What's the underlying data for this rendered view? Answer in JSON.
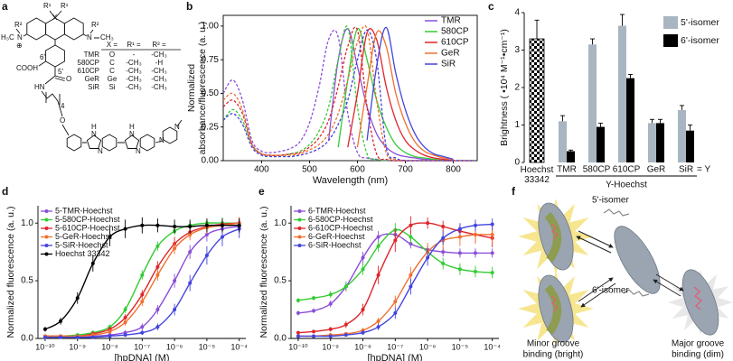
{
  "panel_labels": [
    "a",
    "b",
    "c",
    "d",
    "e",
    "f"
  ],
  "structure": {
    "labels": [
      "R²",
      "H₃C",
      "N",
      "⊕",
      "X",
      "R¹",
      "R¹",
      "N",
      "R²",
      "CH₃",
      "COOH",
      "O",
      "HN",
      "4",
      "O",
      "6'",
      "5'",
      "H",
      "N",
      "N",
      "H",
      "N",
      "N",
      "N",
      "N"
    ],
    "table": {
      "header": [
        "X =",
        "R¹ =",
        "R² ="
      ],
      "rows": [
        [
          "TMR",
          "O",
          "-",
          "-CH₃"
        ],
        [
          "580CP",
          "C",
          "-CH₃",
          "-H"
        ],
        [
          "610CP",
          "C",
          "-CH₃",
          "-CH₃"
        ],
        [
          "GeR",
          "Ge",
          "-CH₃",
          "-CH₃"
        ],
        [
          "SiR",
          "Si",
          "-CH₃",
          "-CH₃"
        ]
      ]
    }
  },
  "chart_data": [
    {
      "type": "line",
      "x_label": "Wavelength (nm)",
      "y_label": [
        "Normalized",
        "absorbance/fluorescence (a. u.)"
      ],
      "x": [
        320,
        340,
        360,
        380,
        400,
        420,
        440,
        460,
        480,
        500,
        520,
        540,
        560,
        580,
        600,
        620,
        640,
        660,
        680,
        700,
        720,
        740,
        760,
        780,
        800,
        820,
        840
      ],
      "xlim": [
        320,
        850
      ],
      "xticks": [
        400,
        500,
        600,
        700,
        800
      ],
      "ylim": [
        0,
        1.08
      ],
      "yticks": [
        {
          "value": 0,
          "label": "0.00"
        },
        {
          "value": 0.25,
          "label": "0.25"
        },
        {
          "value": 0.5,
          "label": "0.50"
        },
        {
          "value": 0.75,
          "label": "0.75"
        },
        {
          "value": 1,
          "label": "1.00"
        }
      ],
      "legend": "upper right",
      "series": [
        {
          "name": "TMR",
          "color": "#8a4fd8",
          "absorbance": [
            0.5,
            0.6,
            0.45,
            0.15,
            0.07,
            0.06,
            0.07,
            0.09,
            0.14,
            0.28,
            0.55,
            0.9,
            0.92,
            0.35,
            0.06,
            0.02,
            0.01,
            0,
            0,
            0,
            0,
            0,
            0,
            0,
            0,
            0,
            0
          ],
          "fluorescence": [
            null,
            null,
            null,
            null,
            null,
            null,
            null,
            null,
            null,
            null,
            null,
            0.15,
            0.75,
            0.98,
            0.7,
            0.4,
            0.2,
            0.1,
            0.05,
            0.03,
            0.02,
            0.01,
            0.01,
            0,
            0,
            null,
            null
          ]
        },
        {
          "name": "580CP",
          "color": "#33cc33",
          "absorbance": [
            0.3,
            0.38,
            0.3,
            0.12,
            0.05,
            0.04,
            0.04,
            0.05,
            0.07,
            0.12,
            0.22,
            0.4,
            0.75,
            0.99,
            0.4,
            0.05,
            0.01,
            0,
            0,
            0,
            0,
            0,
            0,
            0,
            0,
            0,
            0
          ],
          "fluorescence": [
            null,
            null,
            null,
            null,
            null,
            null,
            null,
            null,
            null,
            null,
            null,
            null,
            0.1,
            0.6,
            0.98,
            0.75,
            0.45,
            0.25,
            0.12,
            0.06,
            0.03,
            0.02,
            0.01,
            0,
            0,
            null,
            null
          ]
        },
        {
          "name": "610CP",
          "color": "#e0242a",
          "absorbance": [
            0.4,
            0.45,
            0.35,
            0.12,
            0.05,
            0.04,
            0.04,
            0.05,
            0.06,
            0.1,
            0.17,
            0.3,
            0.55,
            0.85,
            0.97,
            0.4,
            0.05,
            0.01,
            0,
            0,
            0,
            0,
            0,
            0,
            0,
            0,
            0
          ],
          "fluorescence": [
            null,
            null,
            null,
            null,
            null,
            null,
            null,
            null,
            null,
            null,
            null,
            null,
            null,
            0.1,
            0.5,
            0.95,
            0.9,
            0.55,
            0.3,
            0.15,
            0.08,
            0.04,
            0.02,
            0.01,
            0,
            null,
            null
          ]
        },
        {
          "name": "GeR",
          "color": "#f07030",
          "absorbance": [
            0.45,
            0.5,
            0.38,
            0.12,
            0.05,
            0.04,
            0.04,
            0.04,
            0.05,
            0.08,
            0.12,
            0.2,
            0.35,
            0.6,
            0.88,
            0.98,
            0.45,
            0.06,
            0.01,
            0,
            0,
            0,
            0,
            0,
            0,
            0,
            0
          ],
          "fluorescence": [
            null,
            null,
            null,
            null,
            null,
            null,
            null,
            null,
            null,
            null,
            null,
            null,
            null,
            null,
            0.1,
            0.55,
            0.95,
            0.85,
            0.5,
            0.28,
            0.14,
            0.07,
            0.04,
            0.02,
            0.01,
            null,
            null
          ]
        },
        {
          "name": "SiR",
          "color": "#4444dd",
          "absorbance": [
            0.3,
            0.35,
            0.27,
            0.1,
            0.04,
            0.03,
            0.03,
            0.03,
            0.04,
            0.06,
            0.09,
            0.15,
            0.27,
            0.45,
            0.75,
            0.97,
            0.75,
            0.1,
            0.02,
            0,
            0,
            0,
            0,
            0,
            0,
            0,
            0
          ],
          "fluorescence": [
            null,
            null,
            null,
            null,
            null,
            null,
            null,
            null,
            null,
            null,
            null,
            null,
            null,
            null,
            null,
            0.15,
            0.7,
            0.99,
            0.65,
            0.38,
            0.2,
            0.1,
            0.05,
            0.03,
            0.01,
            null,
            null
          ]
        }
      ]
    },
    {
      "type": "bar",
      "y_label": "Brightness ( •10⁴ M⁻¹•cm⁻¹)",
      "categories": [
        "Hoechst 33342",
        "TMR",
        "580CP",
        "610CP",
        "GeR",
        "SiR"
      ],
      "ylim": [
        0,
        4
      ],
      "yticks": [
        0,
        1,
        2,
        3,
        4
      ],
      "legend": "right",
      "reference_values": [
        3.3,
        null,
        null,
        null,
        null,
        null
      ],
      "reference_errors": [
        0.5,
        null,
        null,
        null,
        null,
        null
      ],
      "series": [
        {
          "name": "5'-isomer",
          "color": "#a9b5c1",
          "values": [
            null,
            1.1,
            3.15,
            3.65,
            1.05,
            1.4
          ],
          "errors": [
            null,
            0.15,
            0.15,
            0.3,
            0.1,
            0.12
          ]
        },
        {
          "name": "6'-isomer",
          "color": "#000000",
          "values": [
            null,
            0.3,
            0.95,
            2.25,
            1.05,
            0.85
          ],
          "errors": [
            null,
            0.03,
            0.1,
            0.1,
            0.1,
            0.15
          ]
        }
      ],
      "annotations": {
        "suffix": "= Y",
        "group": "Y-Hoechst"
      }
    },
    {
      "type": "scatter",
      "log_x": true,
      "x_label": "[hpDNA] (M)",
      "y_label": "Normalized fluorescence (a. u.)",
      "x": [
        1e-10,
        3e-10,
        1e-09,
        3e-09,
        1e-08,
        3e-08,
        1e-07,
        3e-07,
        1e-06,
        3e-06,
        1e-05,
        3e-05,
        0.0001
      ],
      "xlim": [
        6e-11,
        0.00016
      ],
      "xticks": [
        {
          "value": 1e-10,
          "label": "10⁻¹⁰"
        },
        {
          "value": 1e-09,
          "label": "10⁻⁹"
        },
        {
          "value": 1e-08,
          "label": "10⁻⁸"
        },
        {
          "value": 1e-07,
          "label": "10⁻⁷"
        },
        {
          "value": 1e-06,
          "label": "10⁻⁶"
        },
        {
          "value": 1e-05,
          "label": "10⁻⁵"
        },
        {
          "value": 0.0001,
          "label": "10⁻⁴"
        }
      ],
      "ylim": [
        0,
        1.15
      ],
      "yticks": [
        {
          "value": 0,
          "label": "0.0"
        },
        {
          "value": 0.5,
          "label": "0.5"
        },
        {
          "value": 1,
          "label": "1.0"
        }
      ],
      "legend": "upper left",
      "series": [
        {
          "name": "5-TMR-Hoechst",
          "color": "#8a4fd8",
          "values": [
            0.02,
            0.02,
            0.02,
            0.02,
            0.03,
            0.05,
            0.1,
            0.25,
            0.5,
            0.75,
            0.9,
            0.95,
            0.97
          ],
          "errors": [
            0.01,
            0.01,
            0.01,
            0.01,
            0.01,
            0.02,
            0.03,
            0.04,
            0.06,
            0.06,
            0.06,
            0.06,
            0.06
          ]
        },
        {
          "name": "5-580CP-Hoechst",
          "color": "#33cc33",
          "values": [
            0.02,
            0.02,
            0.03,
            0.05,
            0.1,
            0.25,
            0.55,
            0.8,
            0.93,
            0.98,
            1.0,
            1.0,
            1.0
          ],
          "errors": [
            0.01,
            0.01,
            0.01,
            0.02,
            0.02,
            0.03,
            0.04,
            0.04,
            0.03,
            0.03,
            0.03,
            0.05,
            0.05
          ]
        },
        {
          "name": "5-610CP-Hoechst",
          "color": "#e0242a",
          "values": [
            0.02,
            0.02,
            0.02,
            0.04,
            0.08,
            0.18,
            0.38,
            0.62,
            0.82,
            0.92,
            0.97,
            0.99,
            1.0
          ],
          "errors": [
            0.01,
            0.01,
            0.01,
            0.02,
            0.02,
            0.03,
            0.04,
            0.05,
            0.06,
            0.05,
            0.05,
            0.05,
            0.05
          ]
        },
        {
          "name": "5-GeR-Hoechst",
          "color": "#f07030",
          "values": [
            0.02,
            0.02,
            0.02,
            0.03,
            0.06,
            0.14,
            0.32,
            0.55,
            0.78,
            0.9,
            0.96,
            0.98,
            1.0
          ],
          "errors": [
            0.01,
            0.01,
            0.01,
            0.02,
            0.02,
            0.03,
            0.04,
            0.05,
            0.05,
            0.05,
            0.05,
            0.05,
            0.05
          ]
        },
        {
          "name": "5-SiR-Hoechst",
          "color": "#4444dd",
          "values": [
            0.01,
            0.01,
            0.01,
            0.01,
            0.02,
            0.03,
            0.05,
            0.1,
            0.25,
            0.48,
            0.72,
            0.88,
            0.95
          ],
          "errors": [
            0.01,
            0.01,
            0.01,
            0.01,
            0.01,
            0.01,
            0.02,
            0.03,
            0.05,
            0.07,
            0.08,
            0.08,
            0.08
          ]
        },
        {
          "name": "Hoechst 33342",
          "color": "#000000",
          "values": [
            0.08,
            0.15,
            0.35,
            0.65,
            0.88,
            0.95,
            0.98,
            0.98,
            0.97,
            0.97,
            0.98,
            0.98,
            0.98
          ],
          "errors": [
            0.02,
            0.03,
            0.05,
            0.07,
            0.08,
            0.08,
            0.07,
            0.06,
            0.06,
            0.06,
            0.06,
            0.06,
            0.06
          ]
        }
      ]
    },
    {
      "type": "scatter",
      "log_x": true,
      "x_label": "[hpDNA] (M)",
      "y_label": "Normalized fluorescence (a. u.)",
      "x": [
        1e-10,
        3e-10,
        1e-09,
        3e-09,
        1e-08,
        3e-08,
        1e-07,
        3e-07,
        1e-06,
        3e-06,
        1e-05,
        3e-05,
        0.0001
      ],
      "xlim": [
        6e-11,
        0.00016
      ],
      "xticks": [
        {
          "value": 1e-10,
          "label": "10⁻¹⁰"
        },
        {
          "value": 1e-09,
          "label": "10⁻⁹"
        },
        {
          "value": 1e-08,
          "label": "10⁻⁸"
        },
        {
          "value": 1e-07,
          "label": "10⁻⁷"
        },
        {
          "value": 1e-06,
          "label": "10⁻⁶"
        },
        {
          "value": 1e-05,
          "label": "10⁻⁵"
        },
        {
          "value": 0.0001,
          "label": "10⁻⁴"
        }
      ],
      "ylim": [
        0,
        1.15
      ],
      "yticks": [
        {
          "value": 0,
          "label": "0.0"
        },
        {
          "value": 0.5,
          "label": "0.5"
        },
        {
          "value": 1,
          "label": "1.0"
        }
      ],
      "legend": "upper left",
      "series": [
        {
          "name": "6-TMR-Hoechst",
          "color": "#8a4fd8",
          "values": [
            0.22,
            0.24,
            0.3,
            0.45,
            0.7,
            0.88,
            0.9,
            0.82,
            0.77,
            0.75,
            0.74,
            0.74,
            0.74
          ],
          "errors": [
            0.02,
            0.02,
            0.03,
            0.04,
            0.05,
            0.05,
            0.05,
            0.04,
            0.04,
            0.04,
            0.04,
            0.04,
            0.04
          ]
        },
        {
          "name": "6-580CP-Hoechst",
          "color": "#33cc33",
          "values": [
            0.33,
            0.35,
            0.38,
            0.45,
            0.6,
            0.8,
            0.94,
            0.88,
            0.75,
            0.65,
            0.6,
            0.58,
            0.57
          ],
          "errors": [
            0.02,
            0.02,
            0.03,
            0.04,
            0.05,
            0.05,
            0.06,
            0.06,
            0.06,
            0.05,
            0.05,
            0.05,
            0.05
          ]
        },
        {
          "name": "6-610CP-Hoechst",
          "color": "#e0242a",
          "values": [
            0.05,
            0.06,
            0.08,
            0.12,
            0.25,
            0.55,
            0.85,
            0.98,
            1.0,
            0.97,
            0.93,
            0.9,
            0.87
          ],
          "errors": [
            0.01,
            0.01,
            0.02,
            0.03,
            0.05,
            0.08,
            0.1,
            0.08,
            0.05,
            0.05,
            0.06,
            0.07,
            0.08
          ]
        },
        {
          "name": "6-GeR-Hoechst",
          "color": "#f07030",
          "values": [
            0.02,
            0.02,
            0.03,
            0.04,
            0.07,
            0.15,
            0.32,
            0.55,
            0.75,
            0.85,
            0.88,
            0.9,
            0.9
          ],
          "errors": [
            0.01,
            0.01,
            0.01,
            0.01,
            0.02,
            0.03,
            0.05,
            0.07,
            0.08,
            0.08,
            0.08,
            0.08,
            0.08
          ]
        },
        {
          "name": "6-SiR-Hoechst",
          "color": "#4444dd",
          "values": [
            0.02,
            0.02,
            0.02,
            0.03,
            0.05,
            0.1,
            0.22,
            0.45,
            0.7,
            0.87,
            0.95,
            0.98,
            0.99
          ],
          "errors": [
            0.01,
            0.01,
            0.01,
            0.01,
            0.02,
            0.03,
            0.05,
            0.07,
            0.07,
            0.06,
            0.05,
            0.05,
            0.05
          ]
        }
      ]
    }
  ],
  "model": {
    "isomers": [
      "5'-isomer",
      "6'-isomer"
    ],
    "states": [
      [
        "Minor groove",
        "binding (bright)"
      ],
      [
        "Major groove",
        "binding (dim)"
      ]
    ]
  }
}
